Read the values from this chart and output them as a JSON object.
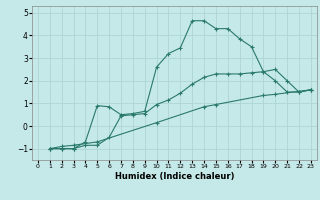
{
  "xlabel": "Humidex (Indice chaleur)",
  "bg_color": "#c5e8e8",
  "grid_color": "#aed4d4",
  "line_color": "#2a7a6a",
  "xlim": [
    -0.5,
    23.5
  ],
  "ylim": [
    -1.5,
    5.3
  ],
  "yticks": [
    -1,
    0,
    1,
    2,
    3,
    4,
    5
  ],
  "xticks": [
    0,
    1,
    2,
    3,
    4,
    5,
    6,
    7,
    8,
    9,
    10,
    11,
    12,
    13,
    14,
    15,
    16,
    17,
    18,
    19,
    20,
    21,
    22,
    23
  ],
  "line1_x": [
    1,
    2,
    3,
    4,
    5,
    6,
    7,
    8,
    9,
    10,
    11,
    12,
    13,
    14,
    15,
    16,
    17,
    18,
    19,
    20,
    21,
    22,
    23
  ],
  "line1_y": [
    -1.0,
    -1.0,
    -1.0,
    -0.7,
    0.9,
    0.85,
    0.5,
    0.55,
    0.65,
    2.6,
    3.2,
    3.45,
    4.65,
    4.65,
    4.3,
    4.3,
    3.85,
    3.5,
    2.4,
    2.0,
    1.5,
    1.5,
    1.6
  ],
  "line2_x": [
    1,
    2,
    3,
    4,
    5,
    6,
    7,
    8,
    9,
    10,
    11,
    12,
    13,
    14,
    15,
    16,
    17,
    18,
    19,
    20,
    21,
    22,
    23
  ],
  "line2_y": [
    -1.0,
    -1.0,
    -1.0,
    -0.85,
    -0.85,
    -0.5,
    0.45,
    0.5,
    0.55,
    0.95,
    1.15,
    1.45,
    1.85,
    2.15,
    2.3,
    2.3,
    2.3,
    2.35,
    2.4,
    2.5,
    2.0,
    1.5,
    1.6
  ],
  "line3_x": [
    1,
    2,
    3,
    5,
    10,
    14,
    15,
    19,
    20,
    23
  ],
  "line3_y": [
    -1.0,
    -0.9,
    -0.85,
    -0.7,
    0.15,
    0.85,
    0.95,
    1.35,
    1.4,
    1.6
  ]
}
